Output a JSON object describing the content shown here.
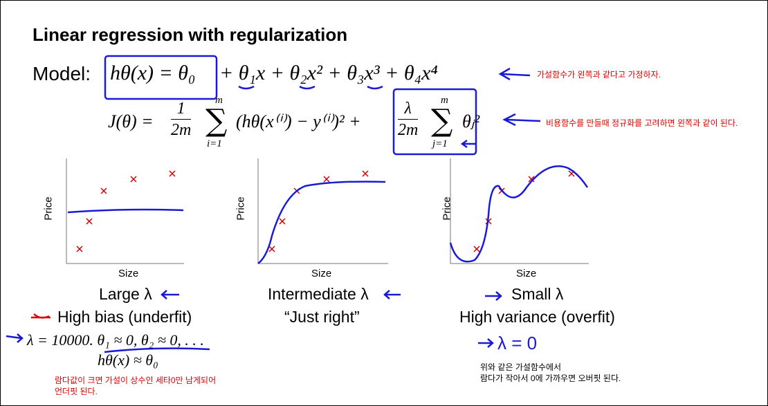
{
  "title": "Linear regression with regularization",
  "model": {
    "label": "Model:",
    "formula_boxed": "hθ(x) = θ₀",
    "formula_rest": "+ θ₁x + θ₂x² + θ₃x³ + θ₄x⁴",
    "note": "가설함수가 왼쪽과 같다고 가정하자."
  },
  "cost": {
    "lhs": "J(θ) =",
    "frac1": {
      "num": "1",
      "den": "2m"
    },
    "sum1": {
      "top": "m",
      "symbol": "∑",
      "bottom": "i=1"
    },
    "term1": "(hθ(x⁽ⁱ⁾) − y⁽ⁱ⁾)² +",
    "frac2": {
      "num": "λ",
      "den": "2m"
    },
    "sum2": {
      "top": "m",
      "symbol": "∑",
      "bottom": "j=1"
    },
    "term2": "θⱼ²",
    "note": "비용함수를 만들때 정규화를 고려하면 왼쪽과 같이 된다."
  },
  "plots": [
    {
      "y_label": "Price",
      "x_label": "Size",
      "caption": "Large λ",
      "description": "High bias (underfit)"
    },
    {
      "y_label": "Price",
      "x_label": "Size",
      "caption": "Intermediate λ",
      "description": "“Just right”"
    },
    {
      "y_label": "Price",
      "x_label": "Size",
      "caption": "Small λ",
      "description": "High variance (overfit)"
    }
  ],
  "large_lambda": {
    "example": "λ = 10000. θ₁ ≈ 0, θ₂ ≈ 0, . . .",
    "result": "hθ(x) ≈ θ₀",
    "note_lines": [
      "람다값이 크면 가설이 상수인 세타0만 남게되어",
      "언더핏 된다."
    ]
  },
  "small_lambda": {
    "handwritten": "λ = 0",
    "note_lines": [
      "위와 같은 가설함수에서",
      "람다가 작아서 0에 가까우면 오버핏 된다."
    ]
  }
}
